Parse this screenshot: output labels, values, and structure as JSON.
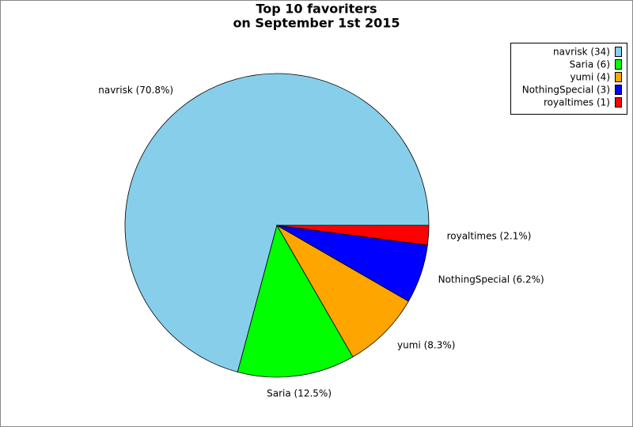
{
  "chart_data": {
    "type": "pie",
    "title": [
      "Top 10 favoriters",
      "on September 1st 2015"
    ],
    "categories": [
      "navrisk (34)",
      "Saria (6)",
      "yumi (4)",
      "NothingSpecial (3)",
      "royaltimes (1)"
    ],
    "values": [
      34,
      6,
      4,
      3,
      1
    ],
    "value_labels": [
      "navrisk (70.8%)",
      "Saria (12.5%)",
      "yumi (8.3%)",
      "NothingSpecial (6.2%)",
      "royaltimes (2.1%)"
    ],
    "colors": [
      "#87ceeb",
      "#00ff00",
      "#ffa500",
      "#0000ff",
      "#ff0000"
    ],
    "legend": "upper right"
  }
}
